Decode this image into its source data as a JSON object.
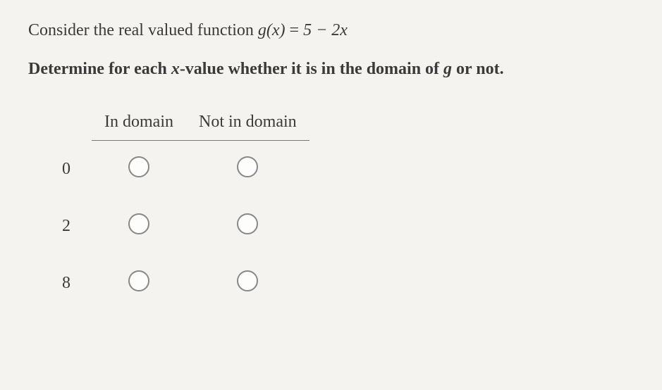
{
  "question": {
    "line1_prefix": "Consider the real valued function ",
    "func_lhs": "g(x)",
    "equals": " = ",
    "func_rhs": "5 − 2x",
    "line2_prefix": "Determine for each ",
    "line2_var": "x",
    "line2_mid": "-value whether it is in the domain of ",
    "line2_g": "g",
    "line2_suffix": " or not."
  },
  "table": {
    "headers": {
      "col1": "In domain",
      "col2": "Not in domain"
    },
    "rows": [
      {
        "x": "0"
      },
      {
        "x": "2"
      },
      {
        "x": "8"
      }
    ]
  },
  "styling": {
    "background_color": "#f5f3f0",
    "text_color": "#3a3a3a",
    "font_size_body": 24,
    "radio_border_color": "#888",
    "radio_size": 30,
    "hr_color": "#777"
  }
}
